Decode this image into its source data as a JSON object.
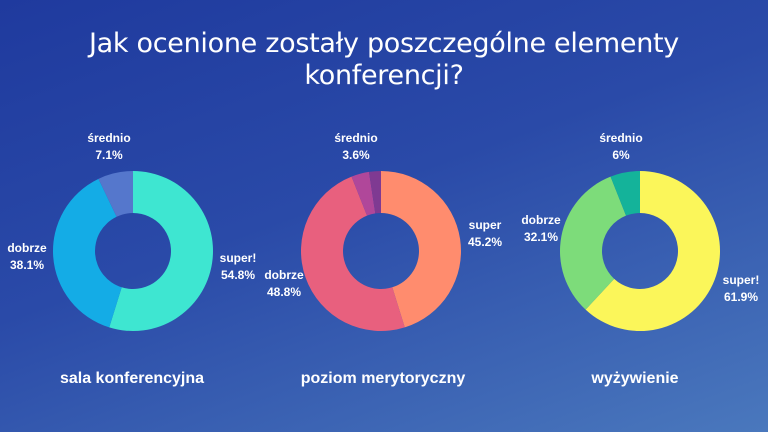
{
  "title_line1": "Jak ocenione zostały poszczególne elementy",
  "title_line2": "konferencji?",
  "chart_data": [
    {
      "type": "pie",
      "title": "sala konferencyjna",
      "slices": [
        {
          "label": "super!",
          "value": 54.8,
          "value_text": "54.8%",
          "color": "#3ee6d1"
        },
        {
          "label": "dobrze",
          "value": 38.1,
          "value_text": "38.1%",
          "color": "#14ace6"
        },
        {
          "label": "średnio",
          "value": 7.1,
          "value_text": "7.1%",
          "color": "#5577cc"
        }
      ]
    },
    {
      "type": "pie",
      "title": "poziom merytoryczny",
      "slices": [
        {
          "label": "super",
          "value": 45.2,
          "value_text": "45.2%",
          "color": "#ff8c6e"
        },
        {
          "label": "dobrze",
          "value": 48.8,
          "value_text": "48.8%",
          "color": "#e8607e"
        },
        {
          "label": "średnio",
          "value": 3.6,
          "value_text": "3.6%",
          "color": "#b0479a"
        },
        {
          "label": "",
          "value": 2.4,
          "value_text": "",
          "color": "#7f3a92"
        }
      ]
    },
    {
      "type": "pie",
      "title": "wyżywienie",
      "slices": [
        {
          "label": "super!",
          "value": 61.9,
          "value_text": "61.9%",
          "color": "#fbf65a"
        },
        {
          "label": "dobrze",
          "value": 32.1,
          "value_text": "32.1%",
          "color": "#7ddc7a"
        },
        {
          "label": "średnio",
          "value": 6,
          "value_text": "6%",
          "color": "#14b39a"
        }
      ]
    }
  ]
}
